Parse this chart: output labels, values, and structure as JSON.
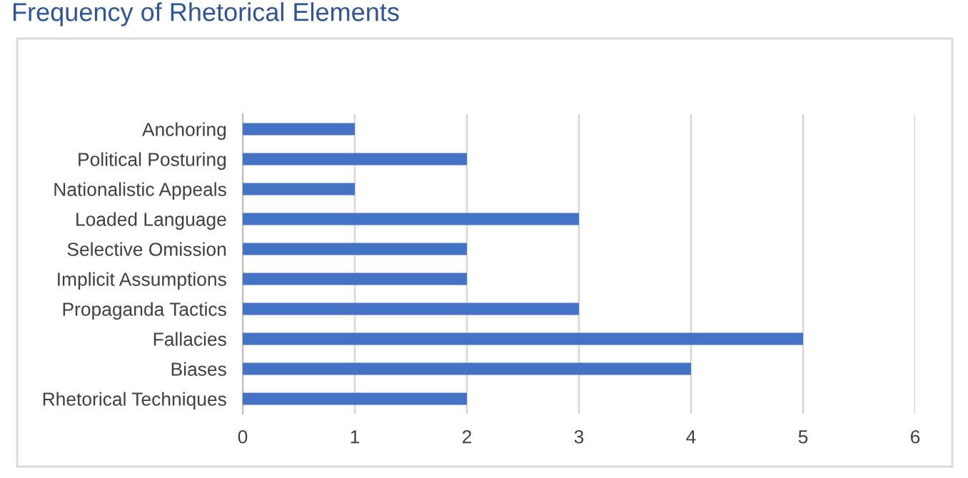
{
  "chart_data": {
    "type": "bar",
    "orientation": "horizontal",
    "title": "Frequency of Rhetorical Elements",
    "categories": [
      "Anchoring",
      "Political Posturing",
      "Nationalistic Appeals",
      "Loaded Language",
      "Selective Omission",
      "Implicit Assumptions",
      "Propaganda Tactics",
      "Fallacies",
      "Biases",
      "Rhetorical Techniques"
    ],
    "values": [
      1,
      2,
      1,
      3,
      2,
      2,
      3,
      5,
      4,
      2
    ],
    "color": "#4472c4",
    "xlim": [
      0,
      6
    ],
    "xticks": [
      0,
      1,
      2,
      3,
      4,
      5,
      6
    ],
    "grid": "x",
    "legend": false
  }
}
